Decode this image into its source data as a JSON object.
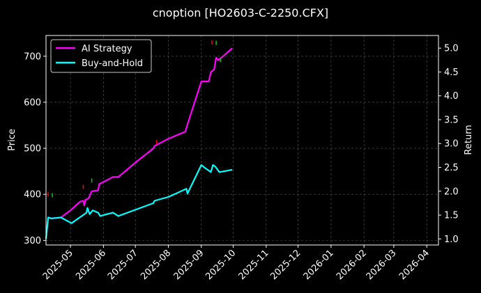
{
  "chart_data": {
    "type": "line",
    "title": "cnoption [HO2603-C-2250.CFX]",
    "xlabel": "",
    "ylabel_left": "Price",
    "ylabel_right": "Return",
    "x_ticks": [
      "2025-05",
      "2025-06",
      "2025-07",
      "2025-08",
      "2025-09",
      "2025-10",
      "2025-11",
      "2025-12",
      "2026-01",
      "2026-02",
      "2026-03",
      "2026-04"
    ],
    "x_range": [
      "2025-04-08",
      "2026-04-12"
    ],
    "ylim_left": [
      290,
      745
    ],
    "yticks_left": [
      300,
      400,
      500,
      600,
      700
    ],
    "ylim_right": [
      0.873,
      5.265
    ],
    "yticks_right": [
      1.0,
      1.5,
      2.0,
      2.5,
      3.0,
      3.5,
      4.0,
      4.5,
      5.0
    ],
    "grid": true,
    "legend_position": "upper-left",
    "series": [
      {
        "name": "AI Strategy",
        "axis": "right",
        "color": "#ff00ff",
        "points": [
          [
            "2025-04-08",
            1.0
          ],
          [
            "2025-04-10",
            1.45
          ],
          [
            "2025-04-13",
            1.43
          ],
          [
            "2025-04-22",
            1.45
          ],
          [
            "2025-05-01",
            1.6
          ],
          [
            "2025-05-10",
            1.78
          ],
          [
            "2025-05-13",
            1.8
          ],
          [
            "2025-05-14",
            1.7
          ],
          [
            "2025-05-15",
            1.82
          ],
          [
            "2025-05-18",
            1.85
          ],
          [
            "2025-05-21",
            2.0
          ],
          [
            "2025-05-27",
            2.02
          ],
          [
            "2025-05-28",
            2.15
          ],
          [
            "2025-06-05",
            2.24
          ],
          [
            "2025-06-10",
            2.3
          ],
          [
            "2025-06-15",
            2.3
          ],
          [
            "2025-07-01",
            2.6
          ],
          [
            "2025-07-18",
            2.9
          ],
          [
            "2025-07-19",
            2.95
          ],
          [
            "2025-08-01",
            3.1
          ],
          [
            "2025-08-17",
            3.25
          ],
          [
            "2025-08-19",
            3.4
          ],
          [
            "2025-09-01",
            4.3
          ],
          [
            "2025-09-08",
            4.3
          ],
          [
            "2025-09-10",
            4.5
          ],
          [
            "2025-09-13",
            4.55
          ],
          [
            "2025-09-15",
            4.8
          ],
          [
            "2025-09-17",
            4.75
          ],
          [
            "2025-09-20",
            4.8
          ],
          [
            "2025-09-30",
            5.0
          ]
        ]
      },
      {
        "name": "Buy-and-Hold",
        "axis": "right",
        "color": "#00ffff",
        "points": [
          [
            "2025-04-08",
            1.0
          ],
          [
            "2025-04-10",
            1.45
          ],
          [
            "2025-04-13",
            1.43
          ],
          [
            "2025-04-22",
            1.45
          ],
          [
            "2025-05-02",
            1.33
          ],
          [
            "2025-05-16",
            1.55
          ],
          [
            "2025-05-17",
            1.65
          ],
          [
            "2025-05-19",
            1.52
          ],
          [
            "2025-05-22",
            1.6
          ],
          [
            "2025-05-27",
            1.55
          ],
          [
            "2025-05-29",
            1.48
          ],
          [
            "2025-06-01",
            1.5
          ],
          [
            "2025-06-10",
            1.55
          ],
          [
            "2025-06-15",
            1.48
          ],
          [
            "2025-07-18",
            1.75
          ],
          [
            "2025-07-19",
            1.8
          ],
          [
            "2025-08-01",
            1.88
          ],
          [
            "2025-08-18",
            2.05
          ],
          [
            "2025-08-19",
            1.95
          ],
          [
            "2025-09-01",
            2.55
          ],
          [
            "2025-09-05",
            2.48
          ],
          [
            "2025-09-10",
            2.4
          ],
          [
            "2025-09-12",
            2.55
          ],
          [
            "2025-09-14",
            2.52
          ],
          [
            "2025-09-18",
            2.4
          ],
          [
            "2025-09-30",
            2.45
          ]
        ]
      }
    ],
    "trade_markers": [
      {
        "date": "2025-04-10",
        "price": 400,
        "color": "#ff0000"
      },
      {
        "date": "2025-04-14",
        "price": 398,
        "color": "#00cc00"
      },
      {
        "date": "2025-05-13",
        "price": 416,
        "color": "#ff0000"
      },
      {
        "date": "2025-05-21",
        "price": 430,
        "color": "#00cc00"
      },
      {
        "date": "2025-07-21",
        "price": 514,
        "color": "#ff0000"
      },
      {
        "date": "2025-09-11",
        "price": 730,
        "color": "#ff0000"
      },
      {
        "date": "2025-09-15",
        "price": 729,
        "color": "#00cc00"
      },
      {
        "date": "2025-09-19",
        "price": 692,
        "color": "#00cc00"
      }
    ]
  }
}
